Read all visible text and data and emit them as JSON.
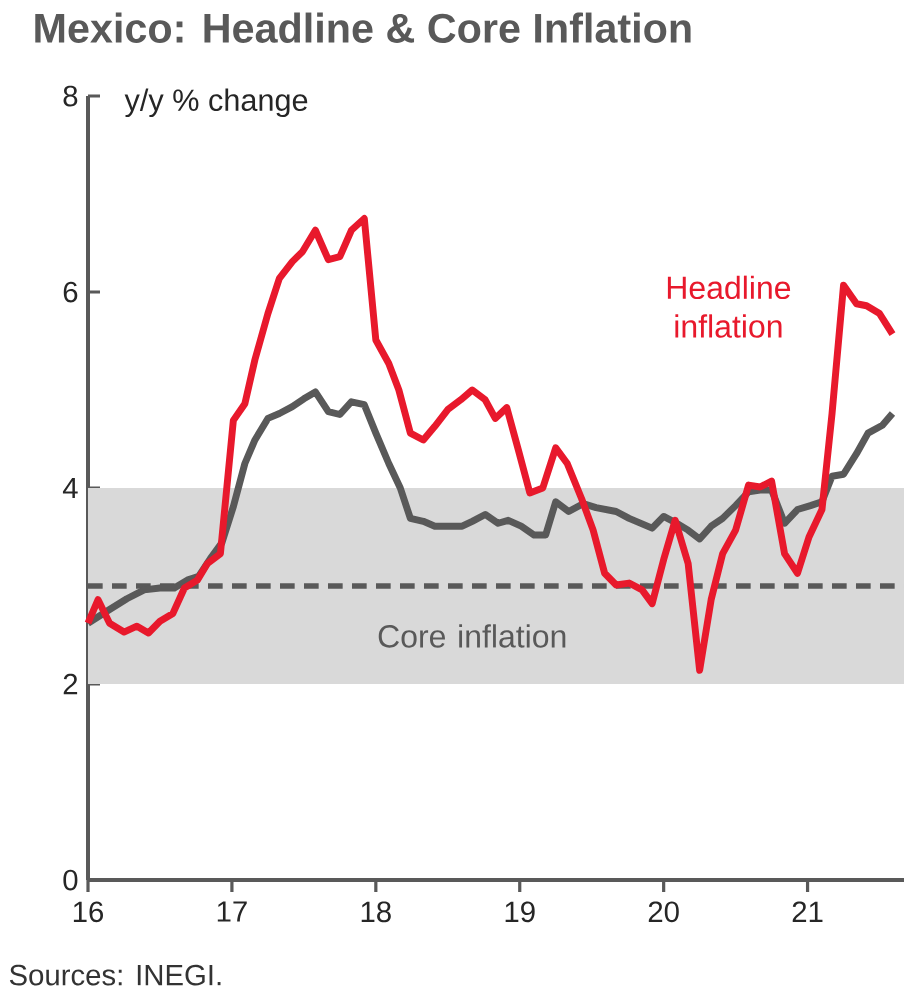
{
  "chart_data": {
    "type": "line",
    "title": "Mexico: Headline & Core Inflation",
    "ylabel": "y/y % change",
    "xlim": [
      16,
      21.67
    ],
    "xticks": [
      16,
      17,
      18,
      19,
      20,
      21
    ],
    "ylim": [
      0,
      8
    ],
    "yticks": [
      0,
      2,
      4,
      6,
      8
    ],
    "grid": false,
    "marker": "none",
    "line_style": "solid",
    "annotations": [
      "Sources: INEGI."
    ],
    "bands": [
      {
        "axis": "y",
        "from": 2,
        "to": 4,
        "color": "#d9d9d9"
      }
    ],
    "ref_lines": [
      {
        "axis": "y",
        "value": 3,
        "color": "#595959",
        "line_style": "dashed"
      }
    ],
    "series": [
      {
        "name": "Headline inflation",
        "color": "#e8192c",
        "x": [
          16.0,
          16.07,
          16.15,
          16.25,
          16.34,
          16.42,
          16.5,
          16.59,
          16.67,
          16.76,
          16.83,
          16.92,
          17.01,
          17.09,
          17.16,
          17.25,
          17.33,
          17.42,
          17.49,
          17.58,
          17.67,
          17.75,
          17.83,
          17.92,
          18.0,
          18.09,
          18.16,
          18.24,
          18.33,
          18.41,
          18.5,
          18.59,
          18.67,
          18.76,
          18.83,
          18.91,
          18.99,
          19.07,
          19.16,
          19.25,
          19.33,
          19.43,
          19.51,
          19.59,
          19.67,
          19.76,
          19.85,
          19.92,
          20.0,
          20.08,
          20.17,
          20.25,
          20.33,
          20.41,
          20.5,
          20.59,
          20.67,
          20.75,
          20.84,
          20.93,
          21.01,
          21.1,
          21.17,
          21.25,
          21.34,
          21.41,
          21.5,
          21.59
        ],
        "values": [
          2.62,
          2.86,
          2.62,
          2.53,
          2.59,
          2.52,
          2.64,
          2.72,
          2.98,
          3.06,
          3.23,
          3.33,
          4.69,
          4.86,
          5.31,
          5.78,
          6.14,
          6.31,
          6.41,
          6.63,
          6.33,
          6.36,
          6.63,
          6.75,
          5.51,
          5.27,
          5.0,
          4.56,
          4.49,
          4.63,
          4.8,
          4.9,
          5.0,
          4.9,
          4.71,
          4.82,
          4.39,
          3.95,
          4.0,
          4.41,
          4.25,
          3.89,
          3.57,
          3.13,
          3.01,
          3.03,
          2.96,
          2.82,
          3.27,
          3.67,
          3.23,
          2.14,
          2.86,
          3.33,
          3.57,
          4.03,
          4.01,
          4.07,
          3.33,
          3.13,
          3.5,
          3.78,
          4.76,
          6.07,
          5.88,
          5.86,
          5.78,
          5.57
        ]
      },
      {
        "name": "Core inflation",
        "color": "#595959",
        "x": [
          16.0,
          16.15,
          16.27,
          16.39,
          16.5,
          16.6,
          16.69,
          16.77,
          16.85,
          16.93,
          17.01,
          17.09,
          17.16,
          17.25,
          17.33,
          17.42,
          17.5,
          17.58,
          17.67,
          17.75,
          17.83,
          17.92,
          18.0,
          18.09,
          18.17,
          18.24,
          18.33,
          18.41,
          18.5,
          18.6,
          18.67,
          18.76,
          18.85,
          18.92,
          19.01,
          19.1,
          19.18,
          19.25,
          19.34,
          19.44,
          19.53,
          19.67,
          19.76,
          19.92,
          20.0,
          20.09,
          20.17,
          20.25,
          20.33,
          20.41,
          20.5,
          20.59,
          20.67,
          20.75,
          20.84,
          20.93,
          21.02,
          21.1,
          21.17,
          21.25,
          21.34,
          21.42,
          21.52,
          21.59
        ],
        "values": [
          2.62,
          2.76,
          2.87,
          2.96,
          2.98,
          2.98,
          3.06,
          3.1,
          3.28,
          3.44,
          3.81,
          4.25,
          4.49,
          4.71,
          4.76,
          4.83,
          4.91,
          4.98,
          4.78,
          4.75,
          4.88,
          4.85,
          4.56,
          4.25,
          4.0,
          3.69,
          3.66,
          3.61,
          3.61,
          3.61,
          3.66,
          3.73,
          3.64,
          3.67,
          3.61,
          3.52,
          3.52,
          3.86,
          3.76,
          3.84,
          3.8,
          3.76,
          3.69,
          3.59,
          3.71,
          3.64,
          3.57,
          3.48,
          3.61,
          3.69,
          3.82,
          3.96,
          3.98,
          3.98,
          3.64,
          3.78,
          3.82,
          3.86,
          4.12,
          4.14,
          4.35,
          4.56,
          4.64,
          4.76
        ]
      }
    ]
  }
}
